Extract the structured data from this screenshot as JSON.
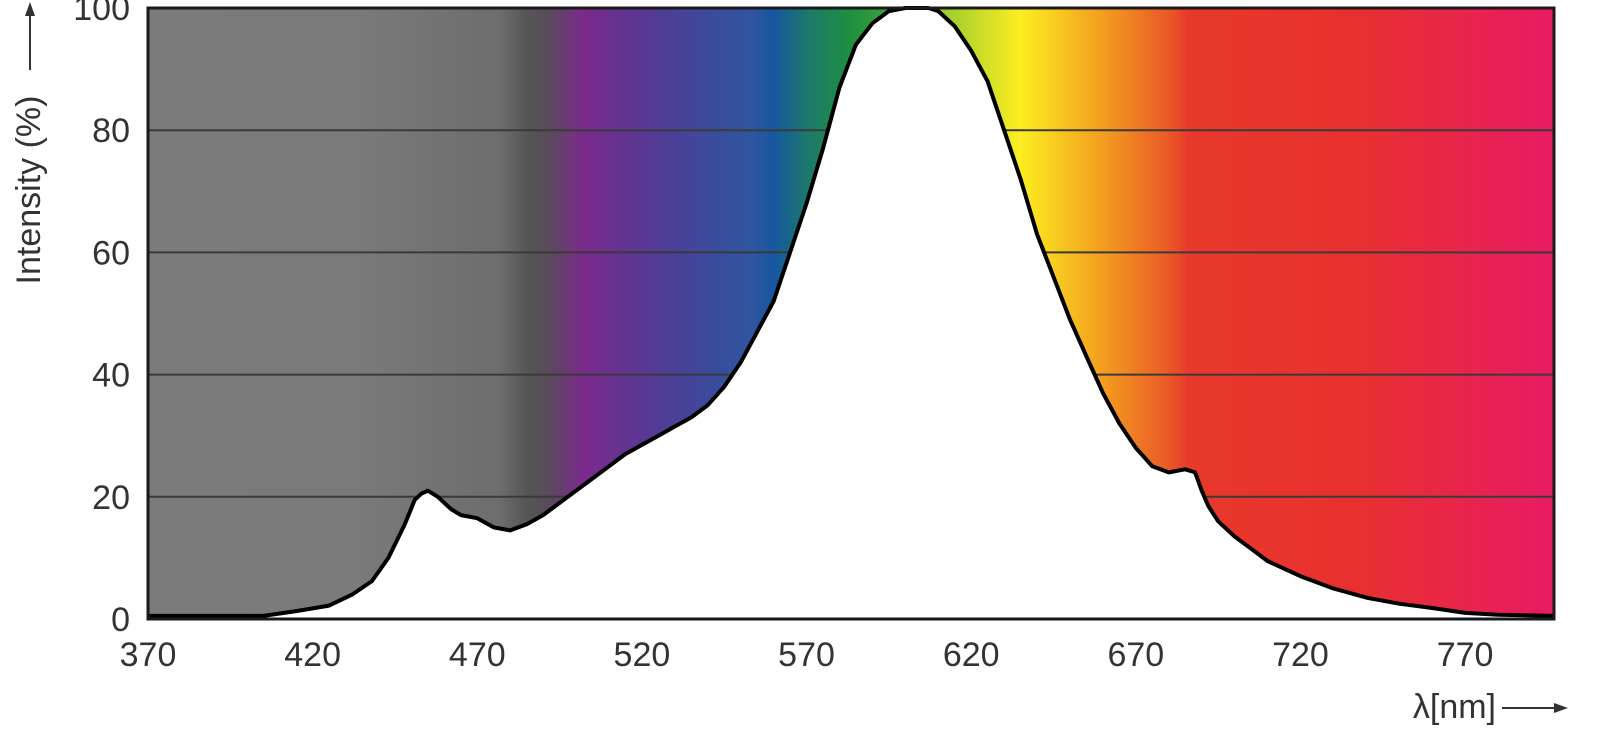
{
  "chart_data": {
    "type": "area",
    "title": "",
    "xlabel": "λ[nm]",
    "ylabel": "Intensity (%)",
    "xlim": [
      370,
      797
    ],
    "ylim": [
      0,
      100
    ],
    "x_ticks": [
      370,
      420,
      470,
      520,
      570,
      620,
      670,
      720,
      770
    ],
    "y_ticks": [
      0,
      20,
      40,
      60,
      80,
      100
    ],
    "grid": true,
    "background": "visible-spectrum-gradient",
    "colors": {
      "curve": "#000000",
      "under_curve_fill": "#ffffff",
      "grid": "#3a3a3a",
      "uv_gray": "#7a7a7a",
      "violet": "#7b2a8c",
      "blue": "#2f55a0",
      "green": "#1f8f3f",
      "yellow": "#fcee21",
      "orange": "#f39c1f",
      "red": "#e8392b",
      "magenta": "#e81b64"
    },
    "series": [
      {
        "x": [
          370,
          405,
          415,
          425,
          432,
          438,
          443,
          448,
          451,
          453,
          455,
          458,
          462,
          465,
          470,
          475,
          480,
          485,
          490,
          495,
          500,
          505,
          510,
          515,
          520,
          525,
          530,
          535,
          540,
          545,
          550,
          555,
          560,
          565,
          570,
          575,
          580,
          585,
          590,
          595,
          600,
          605,
          607,
          610,
          615,
          620,
          625,
          630,
          635,
          640,
          645,
          650,
          655,
          660,
          665,
          670,
          675,
          680,
          685,
          688,
          690,
          692,
          695,
          700,
          705,
          710,
          720,
          730,
          740,
          750,
          760,
          770,
          780,
          797
        ],
        "y": [
          0.5,
          0.5,
          1.3,
          2.2,
          4,
          6.2,
          10,
          15.5,
          19.5,
          20.5,
          21,
          20,
          18,
          17,
          16.5,
          15,
          14.5,
          15.5,
          17,
          19,
          21,
          23,
          25,
          27,
          28.5,
          30,
          31.5,
          33,
          35,
          38,
          42,
          47,
          52,
          60,
          68,
          77,
          87,
          94,
          97.5,
          99.5,
          100,
          100,
          100,
          99.5,
          97,
          93,
          88,
          80,
          72,
          63,
          56,
          49,
          43,
          37,
          32,
          28,
          25,
          24,
          24.5,
          24,
          21,
          18.5,
          16,
          13.5,
          11.5,
          9.5,
          7,
          5,
          3.5,
          2.5,
          1.8,
          1,
          0.7,
          0.5
        ]
      }
    ]
  }
}
